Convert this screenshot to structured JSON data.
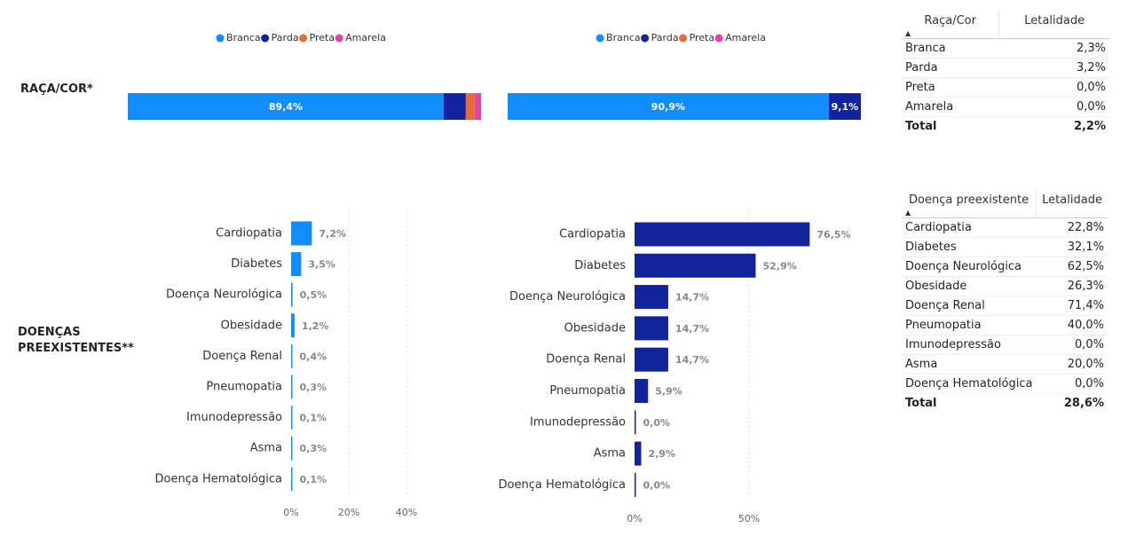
{
  "sections": [
    "RAÇA/COR*",
    "DOENÇAS PREEXISTENTES**"
  ],
  "chart_data": [
    {
      "type": "stacked_bar",
      "xlim": [
        0,
        100
      ],
      "series": [
        {
          "name": "Branca",
          "color": "#118dff",
          "values": [
            89.4
          ],
          "value_labels": [
            "89,4%"
          ]
        },
        {
          "name": "Parda",
          "color": "#12239e",
          "values": [
            6.3
          ],
          "value_labels": [
            null
          ]
        },
        {
          "name": "Preta",
          "color": "#e66c37",
          "values": [
            2.5
          ],
          "value_labels": [
            null
          ]
        },
        {
          "name": "Amarela",
          "color": "#e044a7",
          "values": [
            1.8
          ],
          "value_labels": [
            null
          ]
        }
      ]
    },
    {
      "type": "stacked_bar",
      "xlim": [
        0,
        100
      ],
      "series": [
        {
          "name": "Branca",
          "color": "#118dff",
          "values": [
            90.9
          ],
          "value_labels": [
            "90,9%"
          ]
        },
        {
          "name": "Parda",
          "color": "#12239e",
          "values": [
            9.1
          ],
          "value_labels": [
            "9,1%"
          ]
        },
        {
          "name": "Preta",
          "color": "#e66c37",
          "values": [
            0
          ],
          "value_labels": [
            null
          ]
        },
        {
          "name": "Amarela",
          "color": "#e044a7",
          "values": [
            0
          ],
          "value_labels": [
            null
          ]
        }
      ]
    },
    {
      "type": "bar",
      "color": "#118dff",
      "categories": [
        "Cardiopatia",
        "Diabetes",
        "Doença Neurológica",
        "Obesidade",
        "Doença Renal",
        "Pneumopatia",
        "Imunodepressão",
        "Asma",
        "Doença Hematológica"
      ],
      "values": [
        7.2,
        3.5,
        0.5,
        1.2,
        0.4,
        0.3,
        0.1,
        0.3,
        0.1
      ],
      "value_labels": [
        "7,2%",
        "3,5%",
        "0,5%",
        "1,2%",
        "0,4%",
        "0,3%",
        "0,1%",
        "0,3%",
        "0,1%"
      ],
      "xlim": [
        0,
        40
      ],
      "xticks": [
        {
          "value": 0,
          "label": "0%"
        },
        {
          "value": 20,
          "label": "20%"
        },
        {
          "value": 40,
          "label": "40%"
        }
      ],
      "grid": true
    },
    {
      "type": "bar",
      "color": "#12239e",
      "categories": [
        "Cardiopatia",
        "Diabetes",
        "Doença Neurológica",
        "Obesidade",
        "Doença Renal",
        "Pneumopatia",
        "Imunodepressão",
        "Asma",
        "Doença Hematológica"
      ],
      "values": [
        76.5,
        52.9,
        14.7,
        14.7,
        14.7,
        5.9,
        0.0,
        2.9,
        0.0
      ],
      "value_labels": [
        "76,5%",
        "52,9%",
        "14,7%",
        "14,7%",
        "14,7%",
        "5,9%",
        "0,0%",
        "2,9%",
        "0,0%"
      ],
      "xlim": [
        0,
        100
      ],
      "xticks": [
        {
          "value": 0,
          "label": "0%"
        },
        {
          "value": 50,
          "label": "50%"
        }
      ],
      "grid": true
    }
  ],
  "tables": [
    {
      "header": [
        "Raça/Cor",
        "Letalidade"
      ],
      "rows": [
        [
          "Branca",
          "2,3%"
        ],
        [
          "Parda",
          "3,2%"
        ],
        [
          "Preta",
          "0,0%"
        ],
        [
          "Amarela",
          "0,0%"
        ]
      ],
      "total": [
        "Total",
        "2,2%"
      ]
    },
    {
      "header": [
        "Doença preexistente",
        "Letalidade"
      ],
      "rows": [
        [
          "Cardiopatia",
          "22,8%"
        ],
        [
          "Diabetes",
          "32,1%"
        ],
        [
          "Doença Neurológica",
          "62,5%"
        ],
        [
          "Obesidade",
          "26,3%"
        ],
        [
          "Doença Renal",
          "71,4%"
        ],
        [
          "Pneumopatia",
          "40,0%"
        ],
        [
          "Imunodepressão",
          "0,0%"
        ],
        [
          "Asma",
          "20,0%"
        ],
        [
          "Doença Hematológica",
          "0,0%"
        ]
      ],
      "total": [
        "Total",
        "28,6%"
      ]
    }
  ]
}
